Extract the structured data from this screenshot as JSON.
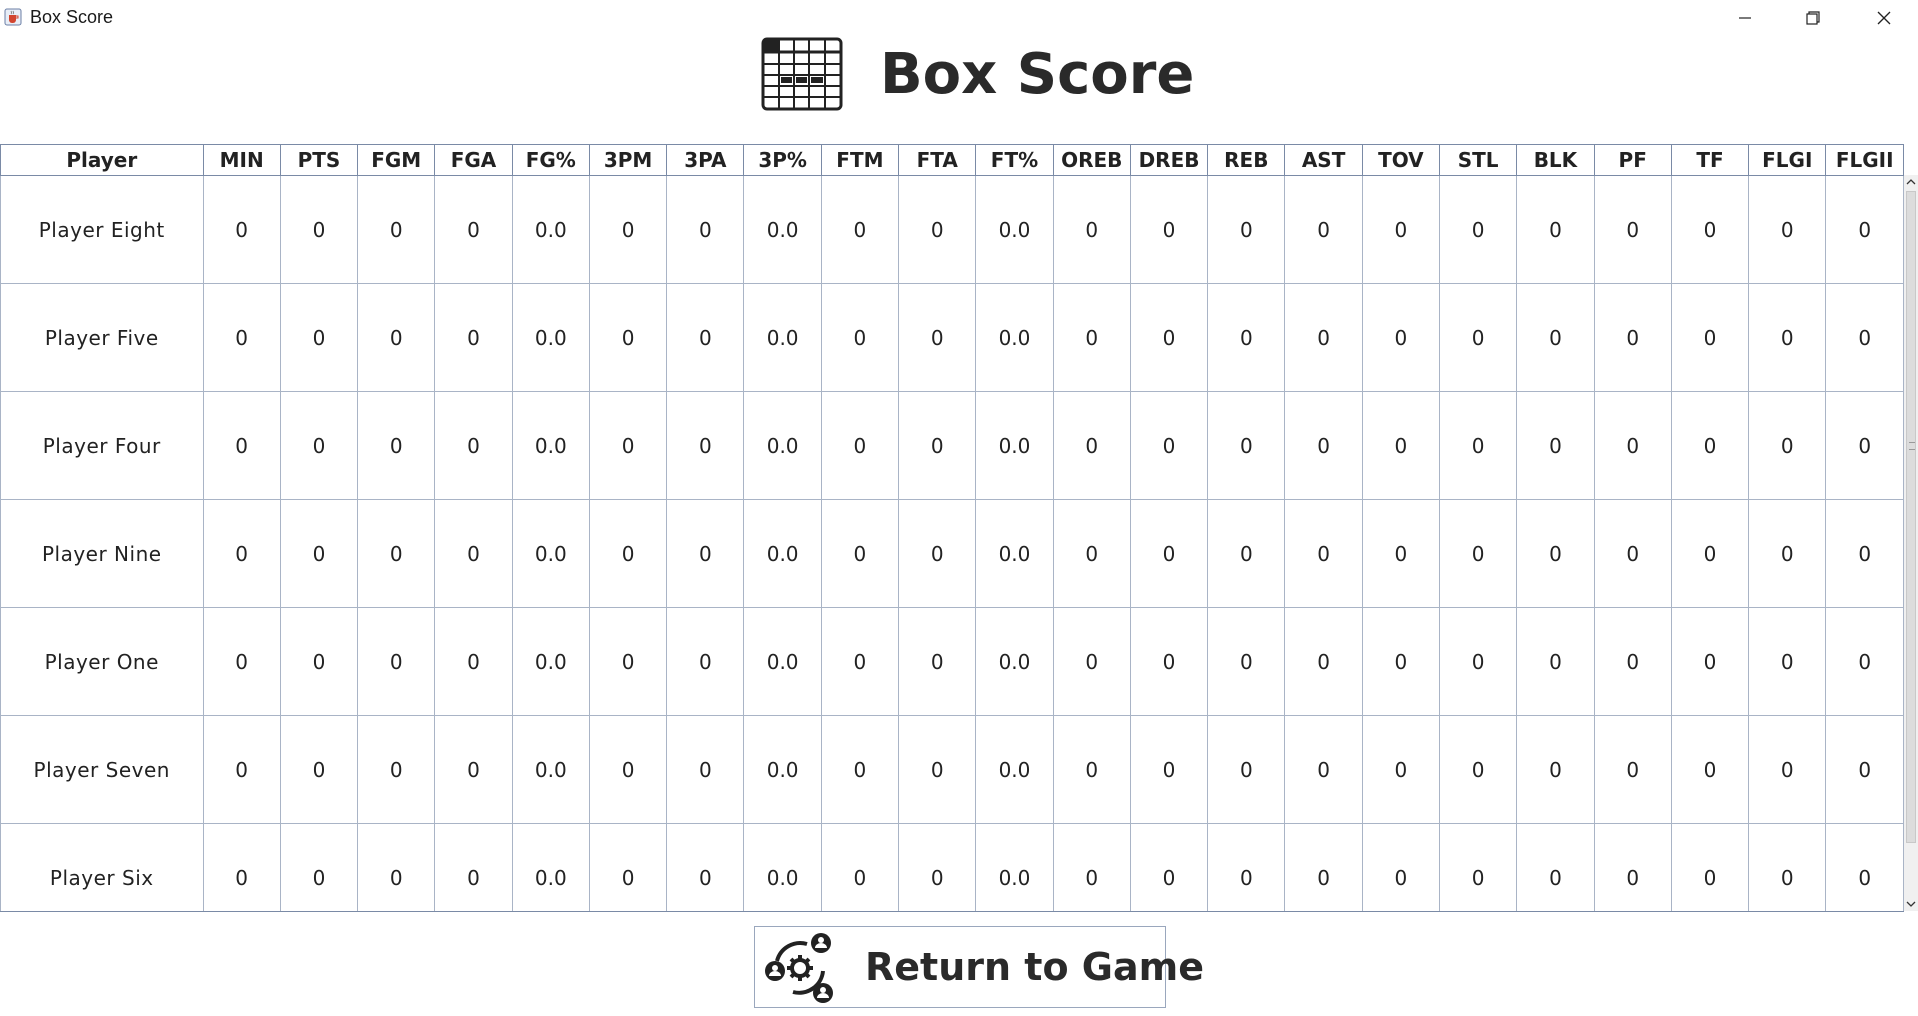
{
  "window": {
    "title": "Box Score",
    "icons": {
      "app": "java-cup-icon",
      "minimize": "minimize-icon",
      "restore": "restore-icon",
      "close": "close-icon"
    }
  },
  "header": {
    "title": "Box Score",
    "icon": "table-grid-icon"
  },
  "table": {
    "columns": [
      "Player",
      "MIN",
      "PTS",
      "FGM",
      "FGA",
      "FG%",
      "3PM",
      "3PA",
      "3P%",
      "FTM",
      "FTA",
      "FT%",
      "OREB",
      "DREB",
      "REB",
      "AST",
      "TOV",
      "STL",
      "BLK",
      "PF",
      "TF",
      "FLGI",
      "FLGII"
    ],
    "rows": [
      [
        "Player Eight",
        "0",
        "0",
        "0",
        "0",
        "0.0",
        "0",
        "0",
        "0.0",
        "0",
        "0",
        "0.0",
        "0",
        "0",
        "0",
        "0",
        "0",
        "0",
        "0",
        "0",
        "0",
        "0",
        "0"
      ],
      [
        "Player Five",
        "0",
        "0",
        "0",
        "0",
        "0.0",
        "0",
        "0",
        "0.0",
        "0",
        "0",
        "0.0",
        "0",
        "0",
        "0",
        "0",
        "0",
        "0",
        "0",
        "0",
        "0",
        "0",
        "0"
      ],
      [
        "Player Four",
        "0",
        "0",
        "0",
        "0",
        "0.0",
        "0",
        "0",
        "0.0",
        "0",
        "0",
        "0.0",
        "0",
        "0",
        "0",
        "0",
        "0",
        "0",
        "0",
        "0",
        "0",
        "0",
        "0"
      ],
      [
        "Player Nine",
        "0",
        "0",
        "0",
        "0",
        "0.0",
        "0",
        "0",
        "0.0",
        "0",
        "0",
        "0.0",
        "0",
        "0",
        "0",
        "0",
        "0",
        "0",
        "0",
        "0",
        "0",
        "0",
        "0"
      ],
      [
        "Player One",
        "0",
        "0",
        "0",
        "0",
        "0.0",
        "0",
        "0",
        "0.0",
        "0",
        "0",
        "0.0",
        "0",
        "0",
        "0",
        "0",
        "0",
        "0",
        "0",
        "0",
        "0",
        "0",
        "0"
      ],
      [
        "Player Seven",
        "0",
        "0",
        "0",
        "0",
        "0.0",
        "0",
        "0",
        "0.0",
        "0",
        "0",
        "0.0",
        "0",
        "0",
        "0",
        "0",
        "0",
        "0",
        "0",
        "0",
        "0",
        "0",
        "0"
      ],
      [
        "Player Six",
        "0",
        "0",
        "0",
        "0",
        "0.0",
        "0",
        "0",
        "0.0",
        "0",
        "0",
        "0.0",
        "0",
        "0",
        "0",
        "0",
        "0",
        "0",
        "0",
        "0",
        "0",
        "0",
        "0"
      ]
    ]
  },
  "footer": {
    "return_label": "Return to Game",
    "return_icon": "team-settings-icon"
  },
  "colors": {
    "grid": "#a9b4c6",
    "header_grid": "#7a8aa6",
    "text": "#222222"
  }
}
